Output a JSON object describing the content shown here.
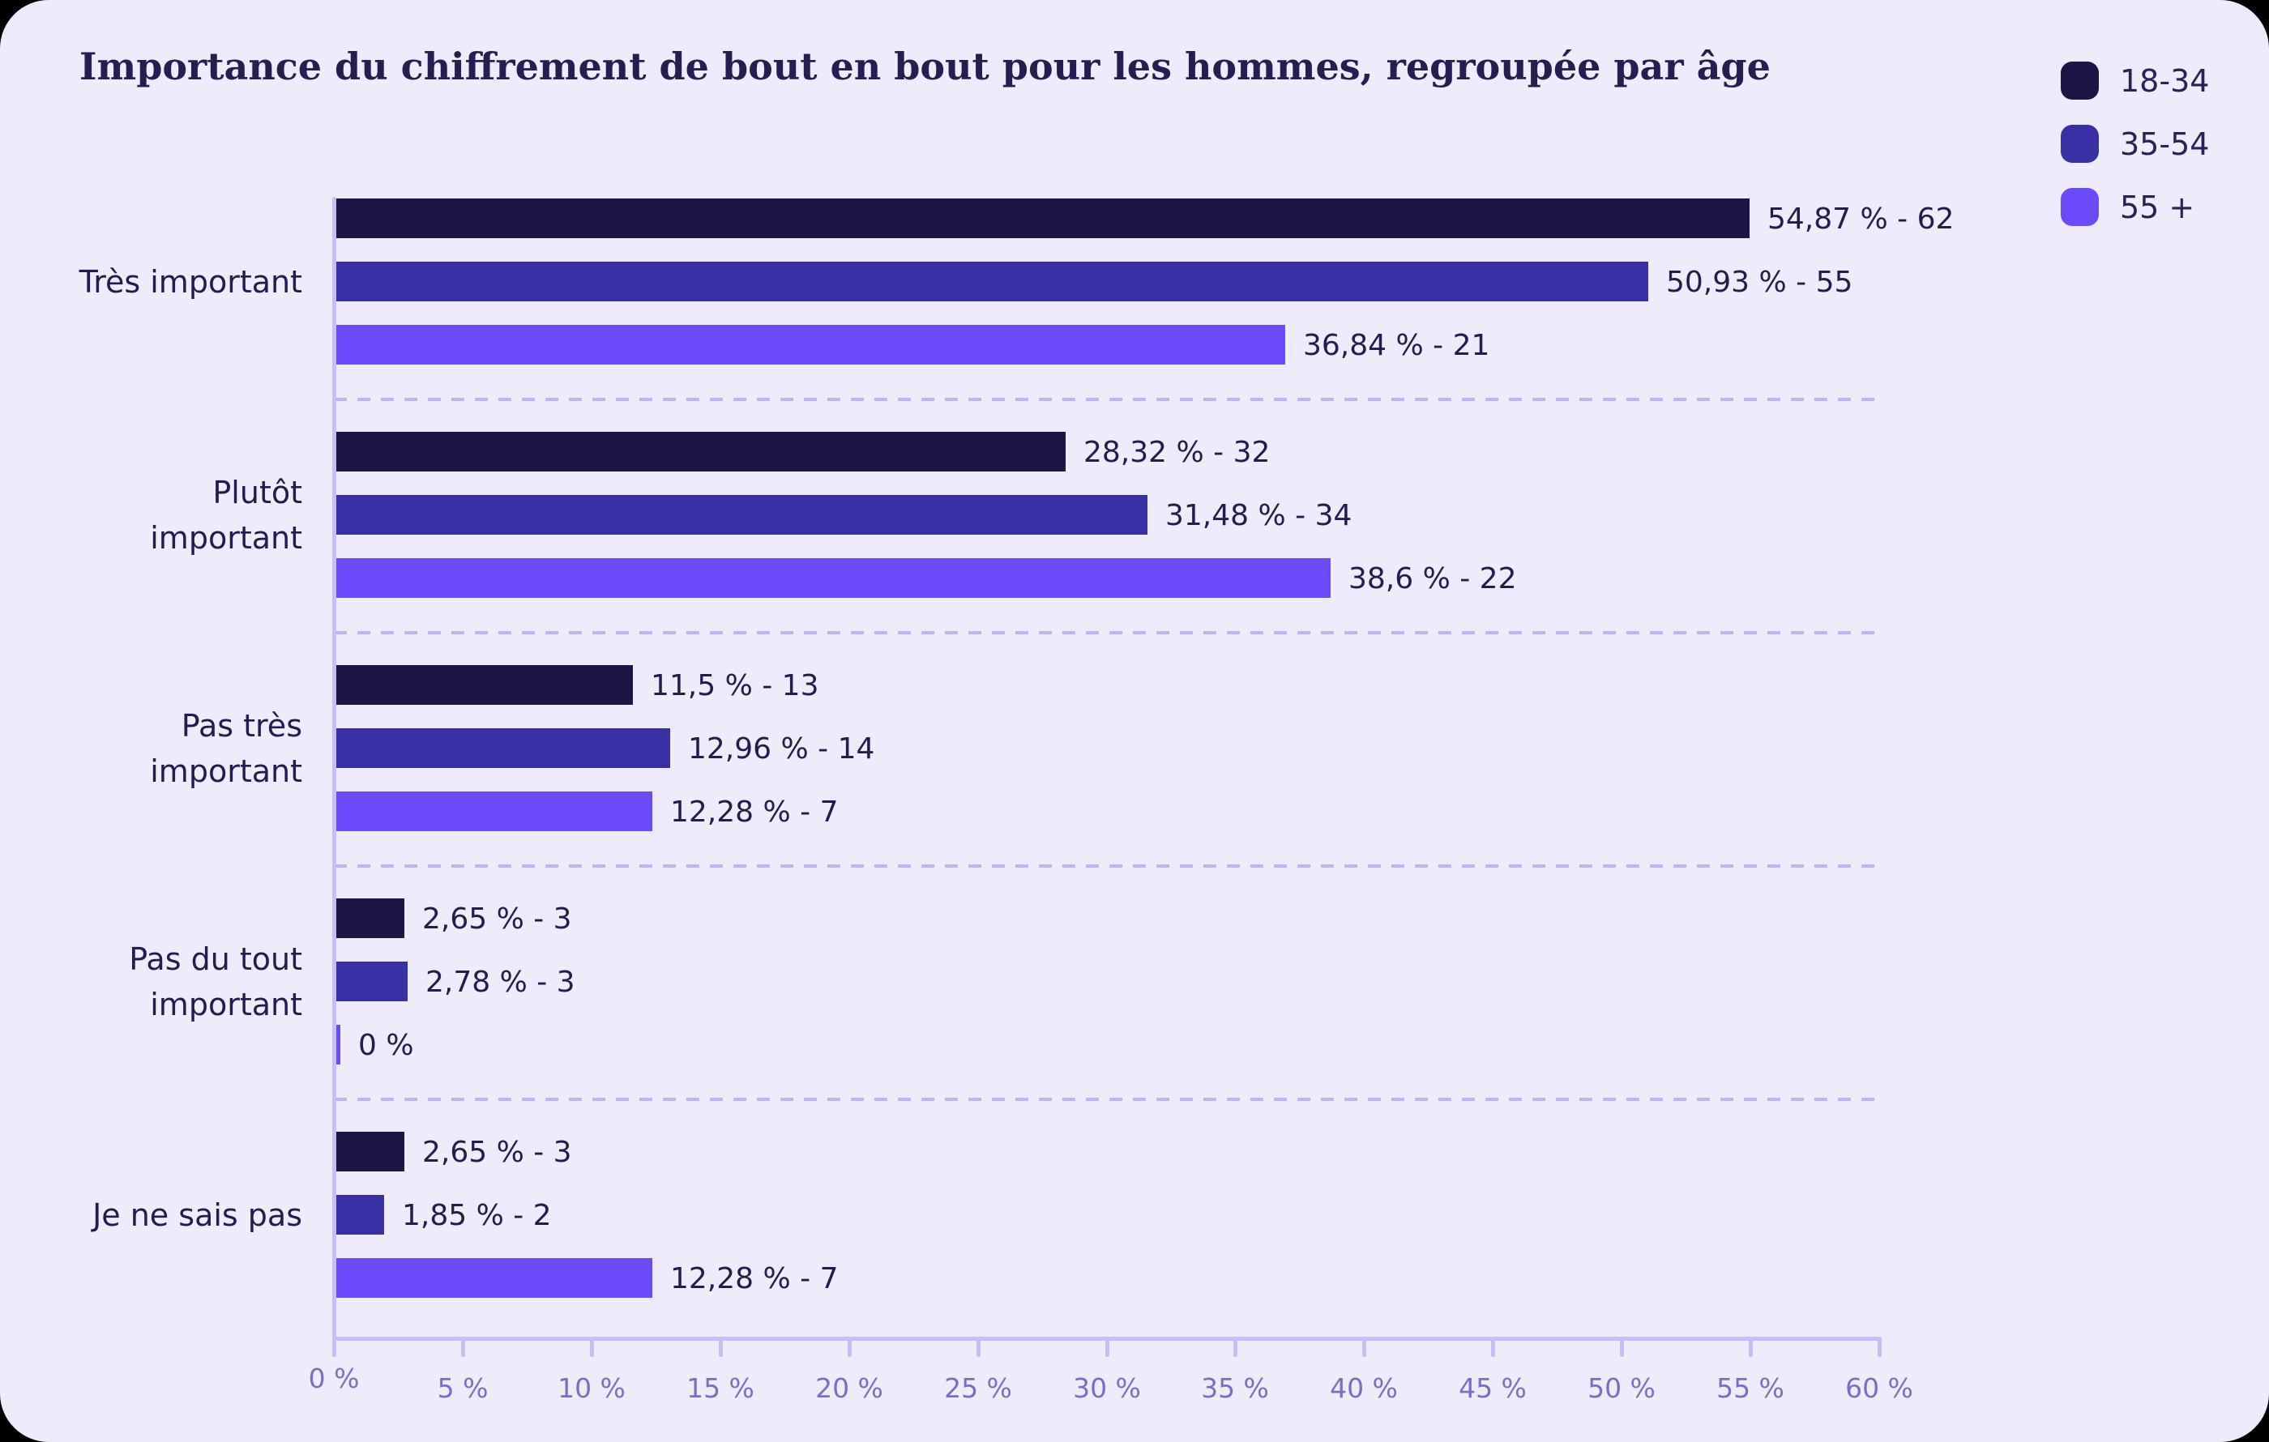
{
  "title": "Importance du chiffrement de bout en bout pour les hommes, regroupée par âge",
  "legend": {
    "items": [
      {
        "label": "18-34",
        "color": "#1d1543"
      },
      {
        "label": "35-54",
        "color": "#3a30a6"
      },
      {
        "label": "55 +",
        "color": "#6a4afb"
      }
    ]
  },
  "chart_data": {
    "type": "bar",
    "orientation": "horizontal",
    "title": "Importance du chiffrement de bout en bout pour les hommes, regroupée par âge",
    "categories": [
      "Très important",
      "Plutôt\nimportant",
      "Pas très\nimportant",
      "Pas du tout\nimportant",
      "Je ne sais pas"
    ],
    "series": [
      {
        "name": "18-34",
        "color": "#1d1543",
        "values": [
          54.87,
          28.32,
          11.5,
          2.65,
          2.65
        ],
        "counts": [
          62,
          32,
          13,
          3,
          3
        ]
      },
      {
        "name": "35-54",
        "color": "#3a30a6",
        "values": [
          50.93,
          31.48,
          12.96,
          2.78,
          1.85
        ],
        "counts": [
          55,
          34,
          14,
          3,
          2
        ]
      },
      {
        "name": "55 +",
        "color": "#6a4afb",
        "values": [
          36.84,
          38.6,
          12.28,
          0,
          12.28
        ],
        "counts": [
          21,
          22,
          7,
          null,
          7
        ]
      }
    ],
    "bar_labels": [
      [
        "54,87 % - 62",
        "50,93 % - 55",
        "36,84 % - 21"
      ],
      [
        "28,32 % - 32",
        "31,48 % - 34",
        "38,6 % - 22"
      ],
      [
        "11,5 % - 13",
        "12,96 % - 14",
        "12,28 % - 7"
      ],
      [
        "2,65 % - 3",
        "2,78 % - 3",
        "0 %"
      ],
      [
        "2,65 % - 3",
        "1,85 % - 2",
        "12,28 % - 7"
      ]
    ],
    "xlim": [
      0,
      60
    ],
    "x_tick_step": 5,
    "x_tick_labels": [
      "0 %",
      "5 %",
      "10 %",
      "15 %",
      "20 %",
      "25 %",
      "30 %",
      "35 %",
      "40 %",
      "45 %",
      "50 %",
      "55 %",
      "60 %"
    ],
    "grid": "dashed-row-separators",
    "legend_position": "top-right",
    "axis_color": "#c7bef3",
    "tick_label_color": "#7d6bc8",
    "background_color": "#eeecfa",
    "text_color": "#251b4f"
  }
}
